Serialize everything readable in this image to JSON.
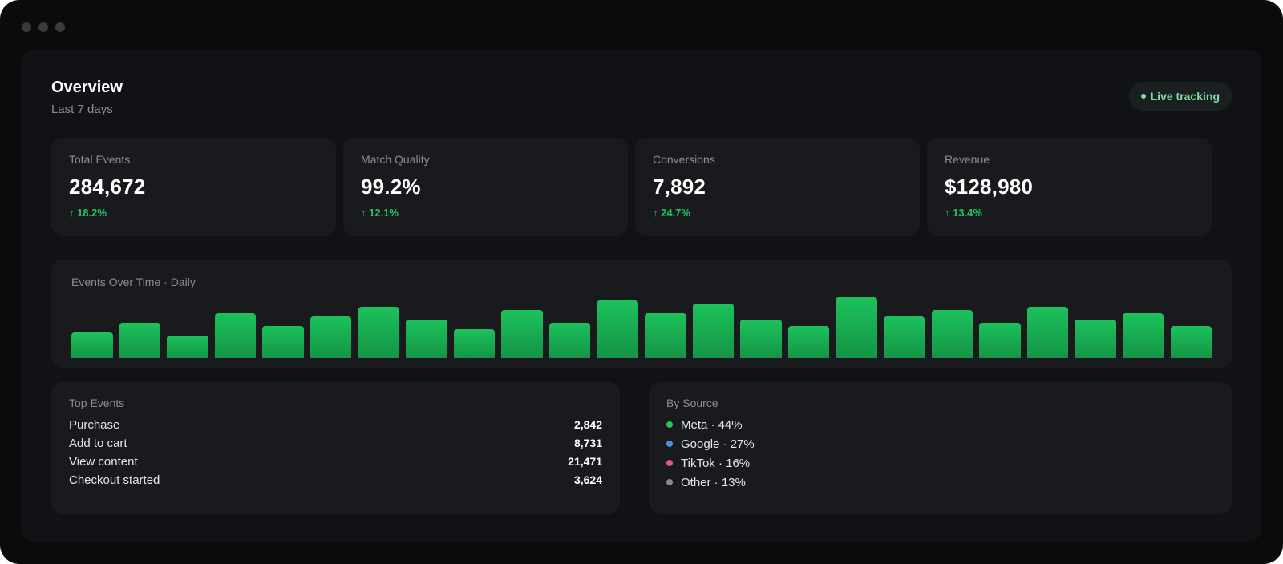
{
  "header": {
    "title": "Overview",
    "subtitle": "Last 7 days",
    "live_label": "Live tracking"
  },
  "stats": [
    {
      "label": "Total Events",
      "value": "284,672",
      "change": "↑ 18.2%"
    },
    {
      "label": "Match Quality",
      "value": "99.2%",
      "change": "↑ 12.1%"
    },
    {
      "label": "Conversions",
      "value": "7,892",
      "change": "↑ 24.7%"
    },
    {
      "label": "Revenue",
      "value": "$128,980",
      "change": "↑ 13.4%"
    }
  ],
  "chart_data": {
    "type": "bar",
    "title": "Events Over Time · Daily",
    "values": [
      40,
      55,
      35,
      70,
      50,
      65,
      80,
      60,
      45,
      75,
      55,
      90,
      70,
      85,
      60,
      50,
      95,
      65,
      75,
      55,
      80,
      60,
      70,
      50
    ],
    "color": "#1cc25b"
  },
  "top_events": {
    "title": "Top Events",
    "rows": [
      {
        "label": "Purchase",
        "value": "2,842"
      },
      {
        "label": "Add to cart",
        "value": "8,731"
      },
      {
        "label": "View content",
        "value": "21,471"
      },
      {
        "label": "Checkout started",
        "value": "3,624"
      }
    ]
  },
  "by_source": {
    "title": "By Source",
    "items": [
      {
        "label": "Meta · 44%",
        "color": "#22c55e"
      },
      {
        "label": "Google · 27%",
        "color": "#4a90e2"
      },
      {
        "label": "TikTok · 16%",
        "color": "#e0559a"
      },
      {
        "label": "Other · 13%",
        "color": "#8a8a8f"
      }
    ]
  }
}
